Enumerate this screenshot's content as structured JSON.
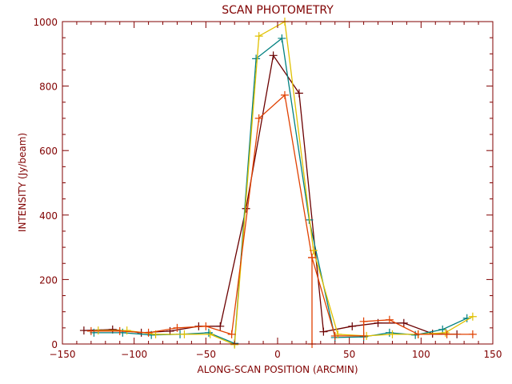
{
  "chart_data": {
    "type": "line",
    "title": "SCAN PHOTOMETRY",
    "xlabel": "ALONG-SCAN POSITION (ARCMIN)",
    "ylabel": "INTENSITY (Jy/beam)",
    "xlim": [
      -150,
      150
    ],
    "ylim": [
      0,
      1000
    ],
    "x_ticks": [
      -150,
      -100,
      -50,
      0,
      50,
      100,
      150
    ],
    "x_tick_labels": [
      "−150",
      "−100",
      "−50",
      "0",
      "50",
      "100",
      "150"
    ],
    "y_ticks": [
      0,
      200,
      400,
      600,
      800,
      1000
    ],
    "y_tick_labels": [
      "0",
      "200",
      "400",
      "600",
      "800",
      "1000"
    ],
    "grid": false,
    "axes_color": "#800000",
    "series": [
      {
        "color": "#6b0000",
        "x": [
          -135,
          -115,
          -95,
          -75,
          -55,
          -40,
          -22,
          -3,
          15,
          32,
          52,
          70,
          88,
          108,
          125
        ],
        "y": [
          42,
          45,
          35,
          40,
          55,
          55,
          420,
          895,
          778,
          38,
          55,
          65,
          65,
          32,
          30
        ]
      },
      {
        "color": "#008080",
        "x": [
          -128,
          -108,
          -88,
          -68,
          -48,
          -30,
          -15,
          3,
          22,
          40,
          60,
          78,
          96,
          115,
          132
        ],
        "y": [
          35,
          35,
          28,
          30,
          35,
          2,
          885,
          948,
          385,
          20,
          22,
          35,
          28,
          45,
          80
        ]
      },
      {
        "color": "#e0c000",
        "x": [
          -125,
          -105,
          -85,
          -65,
          -47,
          -30,
          -13,
          5,
          25,
          42,
          62,
          80,
          98,
          117,
          136
        ],
        "y": [
          42,
          42,
          30,
          30,
          30,
          -2,
          955,
          1000,
          290,
          30,
          25,
          30,
          30,
          35,
          85
        ]
      },
      {
        "color": "#e04000",
        "x": [
          -130,
          -110,
          -90,
          -70,
          -50,
          -32,
          -13,
          5,
          24,
          24,
          24,
          40,
          60,
          60,
          78,
          98,
          118,
          136
        ],
        "y": [
          40,
          40,
          35,
          50,
          55,
          30,
          700,
          772,
          268,
          0,
          268,
          25,
          25,
          70,
          75,
          30,
          30,
          30
        ]
      }
    ]
  }
}
